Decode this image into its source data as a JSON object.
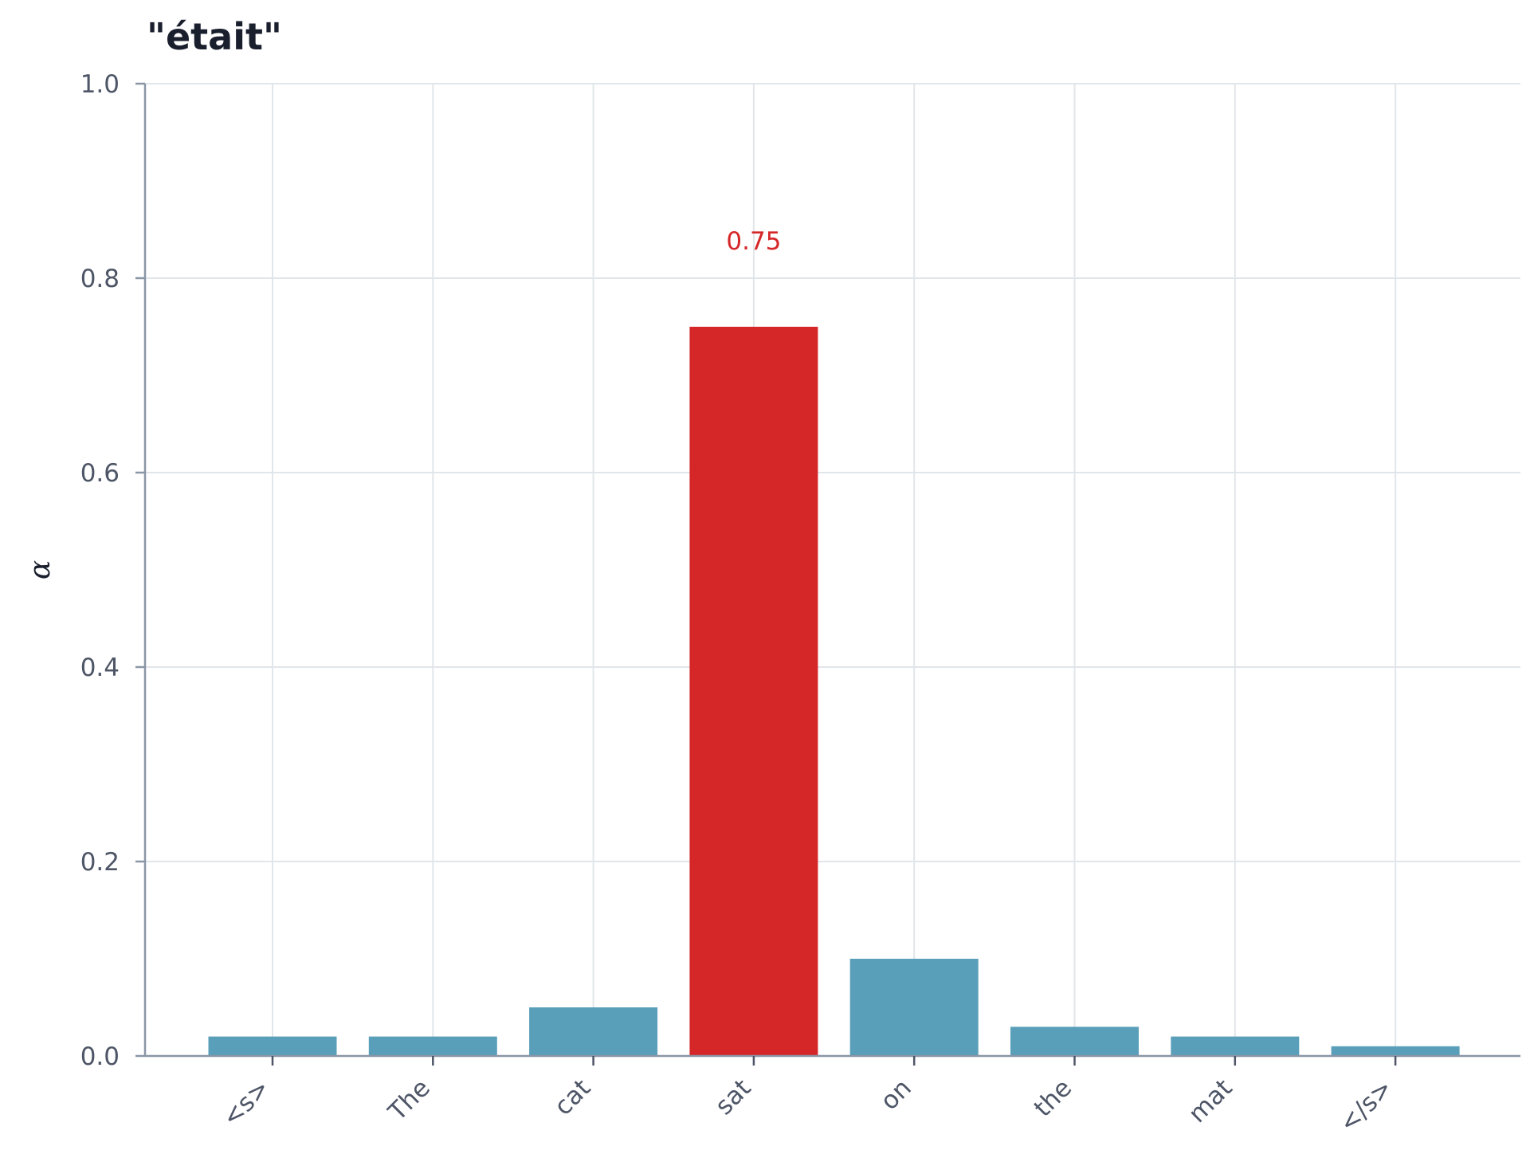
{
  "chart_data": {
    "type": "bar",
    "title": "\"était\"",
    "xlabel": "",
    "ylabel": "α",
    "categories": [
      "<s>",
      "The",
      "cat",
      "sat",
      "on",
      "the",
      "mat",
      "</s>"
    ],
    "values": [
      0.02,
      0.02,
      0.05,
      0.75,
      0.1,
      0.03,
      0.02,
      0.01
    ],
    "highlight_index": 3,
    "highlight_label": "0.75",
    "ylim": [
      0,
      1.0
    ],
    "yticks": [
      0.0,
      0.2,
      0.4,
      0.6,
      0.8,
      1.0
    ],
    "ytick_labels": [
      "0.0",
      "0.2",
      "0.4",
      "0.6",
      "0.8",
      "1.0"
    ],
    "grid": true,
    "colors": {
      "bar": "#5a9fba",
      "highlight": "#d62728",
      "grid": "#e1e6ea",
      "axis": "#8a96a6"
    }
  }
}
